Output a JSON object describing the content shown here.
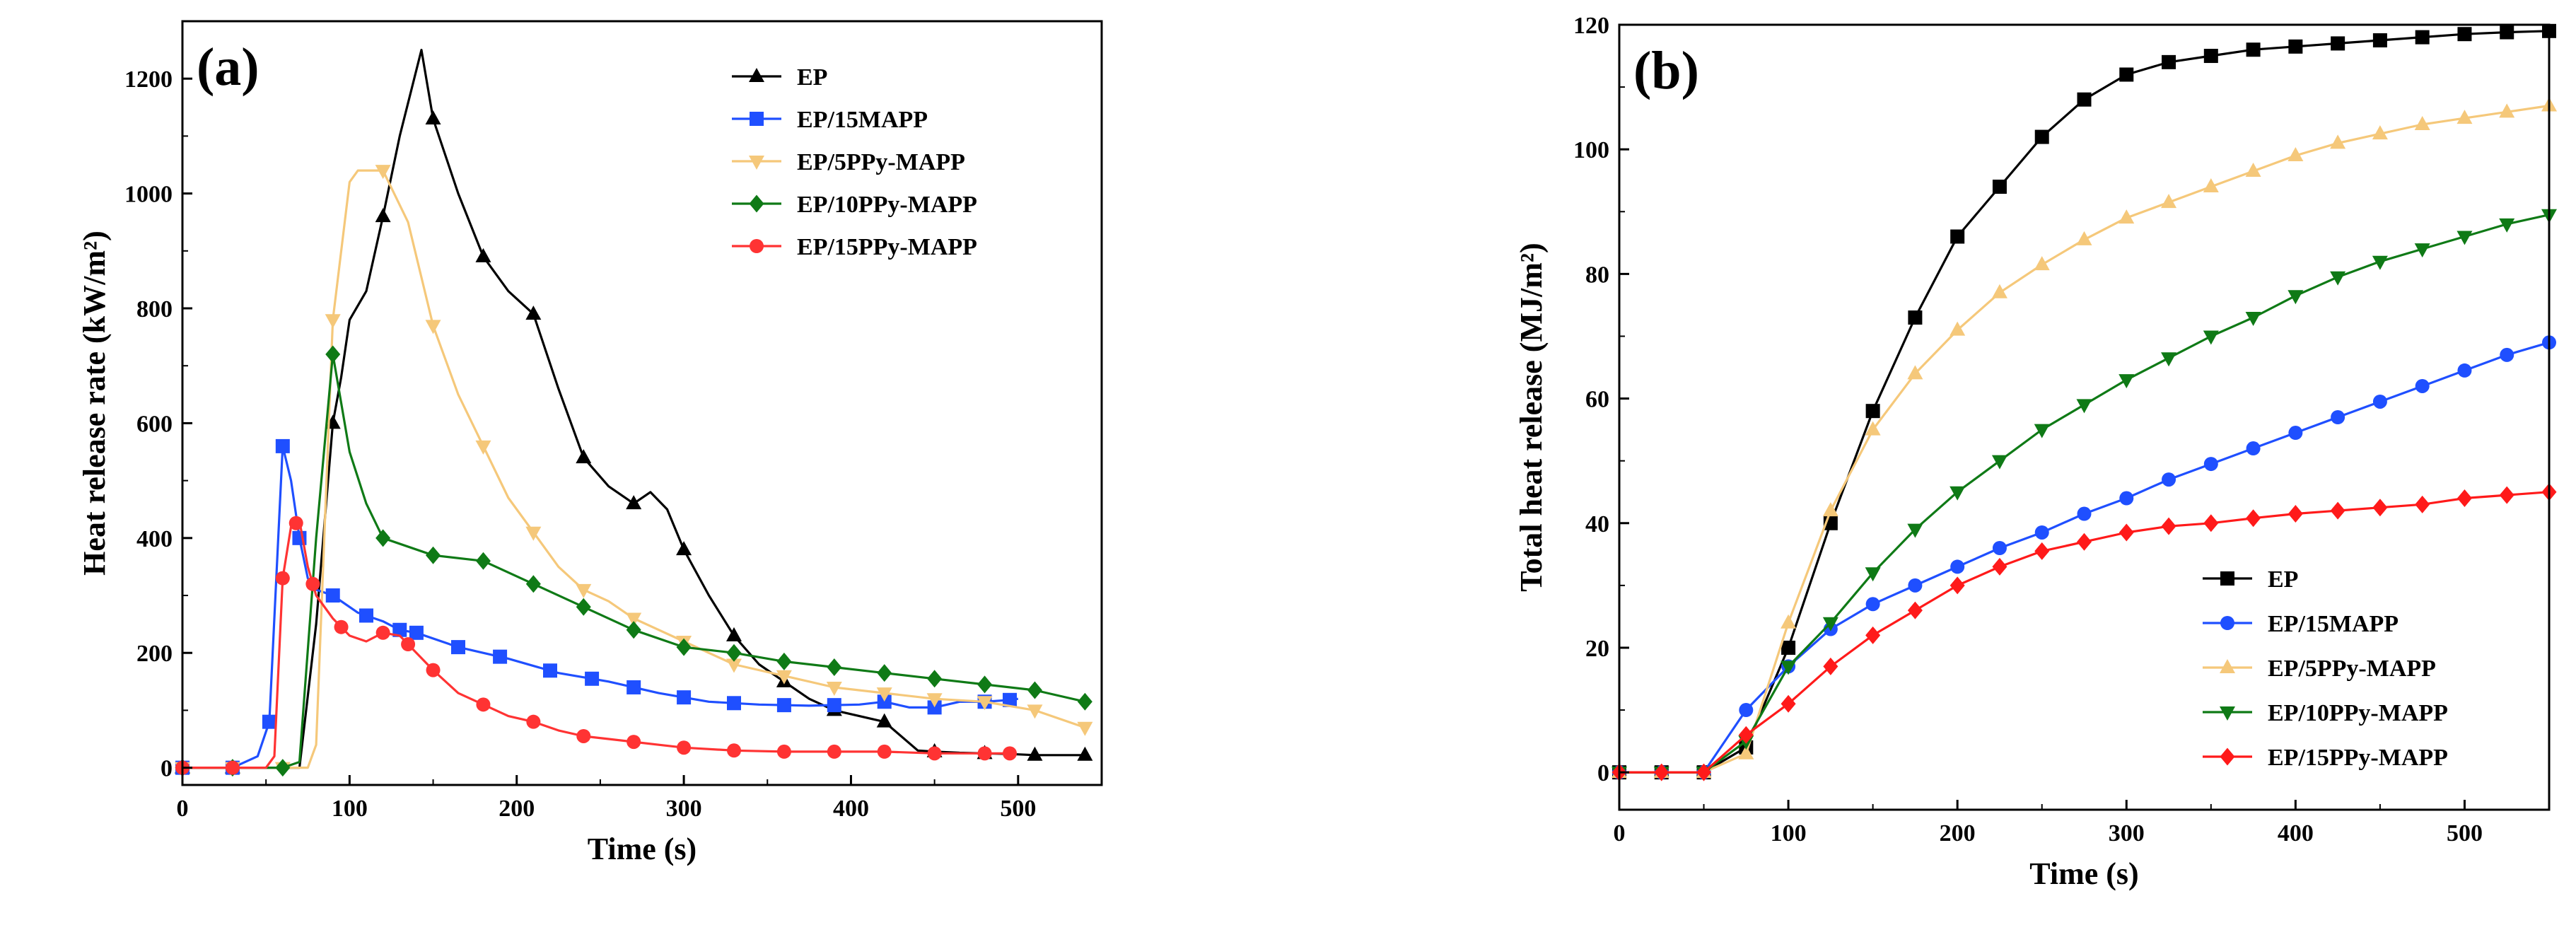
{
  "colors": {
    "EP": "#000000",
    "EP/15MAPP": "#1f4fff",
    "EP/5PPy-MAPP": "#f5c87a",
    "EP/10PPy-MAPP": "#0f7a16",
    "EP/15PPy-MAPP": "#ff3333",
    "EP_b": "#000000",
    "EP/15MAPP_b": "#1f4fff",
    "EP/5PPy-MAPP_b": "#f5c87a",
    "EP/10PPy-MAPP_b": "#0f7a16",
    "EP/15PPy-MAPP_b": "#ff1a1a"
  },
  "chart_data": [
    {
      "type": "line",
      "panel_label": "(a)",
      "xlabel": "Time (s)",
      "ylabel": "Heat release rate (kW/m²)",
      "xlim": [
        0,
        550
      ],
      "ylim": [
        -30,
        1300
      ],
      "xticks": [
        0,
        100,
        200,
        300,
        400,
        500
      ],
      "yticks": [
        0,
        200,
        400,
        600,
        800,
        1000,
        1200
      ],
      "legend_position": "top-right",
      "series": [
        {
          "name": "EP",
          "marker": "triangle-up",
          "x": [
            0,
            30,
            60,
            70,
            80,
            90,
            95,
            100,
            110,
            120,
            130,
            143,
            150,
            165,
            180,
            195,
            210,
            225,
            240,
            255,
            270,
            280,
            290,
            300,
            315,
            330,
            345,
            360,
            375,
            390,
            405,
            420,
            440,
            450,
            465,
            480,
            495,
            510,
            525,
            540
          ],
          "y": [
            0,
            0,
            0,
            0,
            250,
            600,
            680,
            780,
            830,
            960,
            1100,
            1250,
            1130,
            1000,
            890,
            830,
            790,
            660,
            540,
            490,
            460,
            480,
            450,
            380,
            300,
            230,
            180,
            150,
            120,
            100,
            90,
            80,
            30,
            28,
            26,
            25,
            24,
            22,
            22,
            22
          ],
          "marker_x": [
            0,
            30,
            90,
            120,
            150,
            180,
            210,
            240,
            270,
            300,
            330,
            360,
            390,
            420,
            450,
            480,
            510,
            540
          ]
        },
        {
          "name": "EP/15MAPP",
          "marker": "square",
          "x": [
            0,
            30,
            45,
            52,
            60,
            65,
            70,
            75,
            80,
            90,
            105,
            120,
            130,
            140,
            165,
            195,
            225,
            255,
            285,
            315,
            345,
            375,
            405,
            420,
            435,
            450,
            465,
            480,
            495,
            500
          ],
          "y": [
            0,
            0,
            20,
            80,
            560,
            500,
            400,
            330,
            310,
            300,
            270,
            255,
            240,
            235,
            210,
            190,
            165,
            150,
            130,
            115,
            110,
            108,
            110,
            115,
            105,
            105,
            115,
            115,
            118,
            120
          ],
          "marker_x": [
            0,
            30,
            52,
            60,
            70,
            90,
            110,
            130,
            140,
            165,
            190,
            220,
            245,
            270,
            300,
            330,
            360,
            390,
            420,
            450,
            480,
            495
          ]
        },
        {
          "name": "EP/5PPy-MAPP",
          "marker": "triangle-down",
          "x": [
            0,
            30,
            60,
            75,
            80,
            90,
            100,
            105,
            120,
            135,
            150,
            165,
            180,
            195,
            210,
            225,
            240,
            255,
            270,
            300,
            330,
            360,
            390,
            420,
            450,
            480,
            510,
            540
          ],
          "y": [
            0,
            0,
            0,
            0,
            40,
            780,
            1020,
            1040,
            1040,
            950,
            770,
            650,
            560,
            470,
            410,
            350,
            310,
            290,
            260,
            220,
            180,
            160,
            140,
            130,
            120,
            115,
            100,
            70
          ],
          "marker_x": [
            0,
            30,
            60,
            90,
            120,
            150,
            180,
            210,
            240,
            270,
            300,
            330,
            360,
            390,
            420,
            450,
            480,
            510,
            540
          ]
        },
        {
          "name": "EP/10PPy-MAPP",
          "marker": "diamond",
          "x": [
            0,
            30,
            60,
            70,
            80,
            90,
            100,
            110,
            120,
            150,
            180,
            210,
            240,
            270,
            300,
            330,
            360,
            390,
            420,
            450,
            480,
            510,
            540
          ],
          "y": [
            0,
            0,
            0,
            10,
            400,
            720,
            550,
            460,
            400,
            370,
            360,
            320,
            280,
            240,
            210,
            200,
            185,
            175,
            165,
            155,
            145,
            135,
            115
          ],
          "marker_x": [
            0,
            30,
            60,
            90,
            120,
            150,
            180,
            210,
            240,
            270,
            300,
            330,
            360,
            390,
            420,
            450,
            480,
            510,
            540
          ]
        },
        {
          "name": "EP/15PPy-MAPP",
          "marker": "circle",
          "x": [
            0,
            30,
            50,
            55,
            60,
            65,
            70,
            75,
            80,
            90,
            100,
            110,
            120,
            130,
            140,
            150,
            165,
            180,
            195,
            210,
            225,
            240,
            255,
            270,
            285,
            300,
            330,
            360,
            390,
            420,
            450,
            480,
            495
          ],
          "y": [
            0,
            0,
            0,
            20,
            330,
            420,
            430,
            350,
            300,
            260,
            230,
            220,
            235,
            230,
            200,
            170,
            130,
            110,
            90,
            80,
            65,
            55,
            50,
            45,
            40,
            35,
            30,
            28,
            28,
            28,
            25,
            25,
            25
          ],
          "marker_x": [
            0,
            30,
            60,
            68,
            78,
            95,
            120,
            135,
            150,
            180,
            210,
            240,
            270,
            300,
            330,
            360,
            390,
            420,
            450,
            480,
            495
          ]
        }
      ]
    },
    {
      "type": "line",
      "panel_label": "(b)",
      "xlabel": "Time (s)",
      "ylabel": "Total heat release (MJ/m²)",
      "xlim": [
        0,
        550
      ],
      "ylim": [
        -6,
        120
      ],
      "xticks": [
        0,
        100,
        200,
        300,
        400,
        500
      ],
      "yticks": [
        0,
        20,
        40,
        60,
        80,
        100,
        120
      ],
      "legend_position": "bottom-right",
      "series": [
        {
          "name": "EP",
          "marker": "square",
          "x": [
            0,
            25,
            50,
            75,
            100,
            125,
            150,
            175,
            200,
            225,
            250,
            275,
            300,
            325,
            350,
            375,
            400,
            425,
            450,
            475,
            500,
            525,
            550
          ],
          "y": [
            0,
            0,
            0,
            4,
            20,
            40,
            58,
            73,
            86,
            94,
            102,
            108,
            112,
            114,
            115,
            116,
            116.5,
            117,
            117.5,
            118,
            118.5,
            118.8,
            119
          ]
        },
        {
          "name": "EP/15MAPP",
          "marker": "circle",
          "x": [
            0,
            25,
            50,
            75,
            100,
            125,
            150,
            175,
            200,
            225,
            250,
            275,
            300,
            325,
            350,
            375,
            400,
            425,
            450,
            475,
            500,
            525,
            550
          ],
          "y": [
            0,
            0,
            0,
            10,
            17,
            23,
            27,
            30,
            33,
            36,
            38.5,
            41.5,
            44,
            47,
            49.5,
            52,
            54.5,
            57,
            59.5,
            62,
            64.5,
            67,
            69
          ]
        },
        {
          "name": "EP/5PPy-MAPP",
          "marker": "triangle-up",
          "x": [
            0,
            25,
            50,
            75,
            100,
            125,
            150,
            175,
            200,
            225,
            250,
            275,
            300,
            325,
            350,
            375,
            400,
            425,
            450,
            475,
            500,
            525,
            550
          ],
          "y": [
            0,
            0,
            0,
            3,
            24,
            42,
            55,
            64,
            71,
            77,
            81.5,
            85.5,
            89,
            91.5,
            94,
            96.5,
            99,
            101,
            102.5,
            104,
            105,
            106,
            107
          ]
        },
        {
          "name": "EP/10PPy-MAPP",
          "marker": "triangle-down",
          "x": [
            0,
            25,
            50,
            75,
            100,
            125,
            150,
            175,
            200,
            225,
            250,
            275,
            300,
            325,
            350,
            375,
            400,
            425,
            450,
            475,
            500,
            525,
            550
          ],
          "y": [
            0,
            0,
            0,
            5,
            17,
            24,
            32,
            39,
            45,
            50,
            55,
            59,
            63,
            66.5,
            70,
            73,
            76.5,
            79.5,
            82,
            84,
            86,
            88,
            89.5
          ]
        },
        {
          "name": "EP/15PPy-MAPP",
          "marker": "diamond",
          "x": [
            0,
            25,
            50,
            75,
            100,
            125,
            150,
            175,
            200,
            225,
            250,
            275,
            300,
            325,
            350,
            375,
            400,
            425,
            450,
            475,
            500,
            525,
            550
          ],
          "y": [
            0,
            0,
            0,
            6,
            11,
            17,
            22,
            26,
            30,
            33,
            35.5,
            37,
            38.5,
            39.5,
            40,
            40.8,
            41.5,
            42,
            42.5,
            43,
            44,
            44.5,
            45
          ]
        }
      ]
    }
  ]
}
